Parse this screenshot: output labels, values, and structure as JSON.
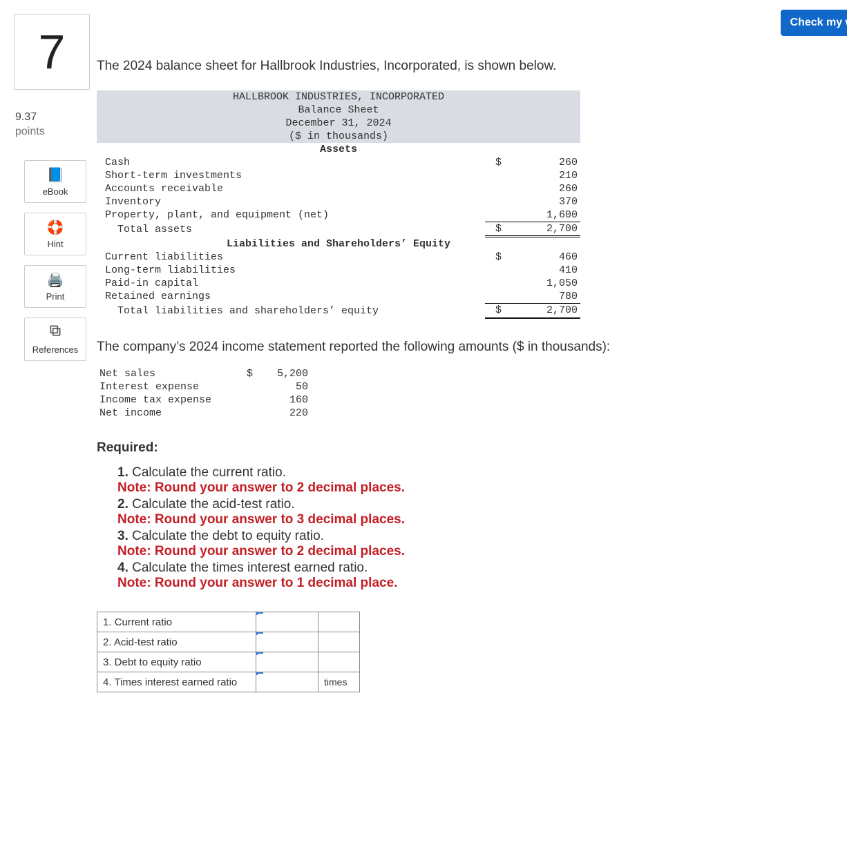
{
  "header": {
    "check_button": "Check my w"
  },
  "question": {
    "number": "7",
    "points_value": "9.37",
    "points_label": "points"
  },
  "sidebar": {
    "ebook": "eBook",
    "hint": "Hint",
    "print": "Print",
    "references": "References"
  },
  "intro": "The 2024 balance sheet for Hallbrook Industries, Incorporated, is shown below.",
  "balance_sheet": {
    "company": "HALLBROOK INDUSTRIES, INCORPORATED",
    "title": "Balance Sheet",
    "date": "December 31, 2024",
    "units": "($ in thousands)",
    "assets_header": "Assets",
    "assets": [
      {
        "label": "Cash",
        "amount": "260",
        "dollar": "$"
      },
      {
        "label": "Short-term investments",
        "amount": "210",
        "dollar": ""
      },
      {
        "label": "Accounts receivable",
        "amount": "260",
        "dollar": ""
      },
      {
        "label": "Inventory",
        "amount": "370",
        "dollar": ""
      },
      {
        "label": "Property, plant, and equipment (net)",
        "amount": "1,600",
        "dollar": ""
      }
    ],
    "total_assets": {
      "label": "Total assets",
      "amount": "2,700",
      "dollar": "$"
    },
    "liab_header": "Liabilities and Shareholders’ Equity",
    "liab": [
      {
        "label": "Current liabilities",
        "amount": "460",
        "dollar": "$"
      },
      {
        "label": "Long-term liabilities",
        "amount": "410",
        "dollar": ""
      },
      {
        "label": "Paid-in capital",
        "amount": "1,050",
        "dollar": ""
      },
      {
        "label": "Retained earnings",
        "amount": "780",
        "dollar": ""
      }
    ],
    "total_liab": {
      "label": "Total liabilities and shareholders’ equity",
      "amount": "2,700",
      "dollar": "$"
    }
  },
  "income_intro": "The company’s 2024 income statement reported the following amounts ($ in thousands):",
  "income_statement": [
    {
      "label": "Net sales",
      "amount": "5,200",
      "dollar": "$"
    },
    {
      "label": "Interest expense",
      "amount": "50",
      "dollar": ""
    },
    {
      "label": "Income tax expense",
      "amount": "160",
      "dollar": ""
    },
    {
      "label": "Net income",
      "amount": "220",
      "dollar": ""
    }
  ],
  "required_label": "Required:",
  "requirements": [
    {
      "text": "Calculate the current ratio.",
      "note": "Note: Round your answer to 2 decimal places."
    },
    {
      "text": "Calculate the acid-test ratio.",
      "note": "Note: Round your answer to 3 decimal places."
    },
    {
      "text": "Calculate the debt to equity ratio.",
      "note": "Note: Round your answer to 2 decimal places."
    },
    {
      "text": "Calculate the times interest earned ratio.",
      "note": "Note: Round your answer to 1 decimal place."
    }
  ],
  "answer_rows": [
    {
      "label": "1. Current ratio",
      "unit": ""
    },
    {
      "label": "2. Acid-test ratio",
      "unit": ""
    },
    {
      "label": "3. Debt to equity ratio",
      "unit": ""
    },
    {
      "label": "4. Times interest earned ratio",
      "unit": "times"
    }
  ]
}
